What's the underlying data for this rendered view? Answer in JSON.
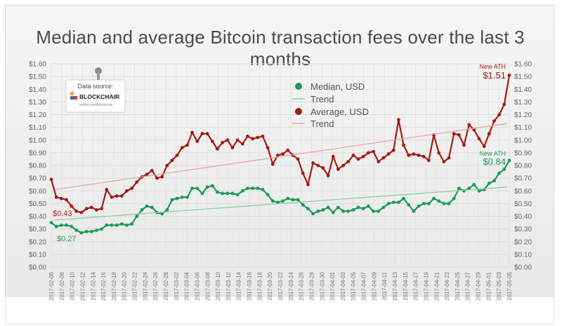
{
  "chart_data": {
    "type": "line",
    "title": "Median and average Bitcoin transaction fees over the last 3 months",
    "xlabel": "",
    "ylabel": "",
    "ylim": [
      0,
      1.6
    ],
    "y_ticks": [
      "$0.00",
      "$0.10",
      "$0.20",
      "$0.30",
      "$0.40",
      "$0.50",
      "$0.60",
      "$0.70",
      "$0.80",
      "$0.90",
      "$1.00",
      "$1.10",
      "$1.20",
      "$1.30",
      "$1.40",
      "$1.50",
      "$1.60"
    ],
    "x_ticks": [
      "2017-02-06",
      "2017-02-08",
      "2017-02-10",
      "2017-02-12",
      "2017-02-14",
      "2017-02-16",
      "2017-02-18",
      "2017-02-20",
      "2017-02-22",
      "2017-02-24",
      "2017-02-26",
      "2017-02-28",
      "2017-03-02",
      "2017-03-04",
      "2017-03-06",
      "2017-03-08",
      "2017-03-10",
      "2017-03-12",
      "2017-03-14",
      "2017-03-16",
      "2017-03-18",
      "2017-03-20",
      "2017-03-22",
      "2017-03-24",
      "2017-03-26",
      "2017-03-28",
      "2017-03-30",
      "2017-04-01",
      "2017-04-03",
      "2017-04-05",
      "2017-04-07",
      "2017-04-09",
      "2017-04-11",
      "2017-04-13",
      "2017-04-15",
      "2017-04-17",
      "2017-04-19",
      "2017-04-21",
      "2017-04-23",
      "2017-04-25",
      "2017-04-27",
      "2017-04-29",
      "2017-05-01",
      "2017-05-03",
      "2017-05-05"
    ],
    "series": [
      {
        "name": "Median, USD",
        "color": "#1f9a5a",
        "values": [
          0.35,
          0.32,
          0.33,
          0.33,
          0.32,
          0.29,
          0.27,
          0.28,
          0.28,
          0.29,
          0.3,
          0.33,
          0.33,
          0.33,
          0.34,
          0.33,
          0.34,
          0.4,
          0.45,
          0.48,
          0.47,
          0.43,
          0.42,
          0.45,
          0.53,
          0.54,
          0.55,
          0.55,
          0.62,
          0.62,
          0.58,
          0.63,
          0.64,
          0.59,
          0.58,
          0.58,
          0.58,
          0.57,
          0.6,
          0.62,
          0.62,
          0.62,
          0.61,
          0.57,
          0.52,
          0.51,
          0.52,
          0.54,
          0.53,
          0.53,
          0.49,
          0.46,
          0.42,
          0.44,
          0.45,
          0.47,
          0.43,
          0.47,
          0.44,
          0.44,
          0.45,
          0.47,
          0.46,
          0.48,
          0.44,
          0.44,
          0.47,
          0.5,
          0.51,
          0.51,
          0.54,
          0.49,
          0.44,
          0.48,
          0.5,
          0.5,
          0.54,
          0.52,
          0.5,
          0.5,
          0.54,
          0.62,
          0.6,
          0.62,
          0.65,
          0.6,
          0.61,
          0.66,
          0.68,
          0.74,
          0.77,
          0.84
        ]
      },
      {
        "name": "Trend",
        "color": "#8ccfa8",
        "values": [
          0.37,
          0.63
        ]
      },
      {
        "name": "Average, USD",
        "color": "#a11d12",
        "values": [
          0.69,
          0.55,
          0.54,
          0.53,
          0.48,
          0.44,
          0.43,
          0.46,
          0.47,
          0.45,
          0.46,
          0.61,
          0.55,
          0.56,
          0.56,
          0.6,
          0.62,
          0.67,
          0.71,
          0.73,
          0.76,
          0.7,
          0.71,
          0.8,
          0.84,
          0.88,
          0.94,
          0.96,
          1.06,
          0.99,
          1.05,
          1.05,
          0.99,
          0.93,
          0.98,
          1.0,
          0.94,
          1.0,
          0.97,
          1.03,
          1.01,
          1.02,
          1.03,
          0.94,
          0.81,
          0.88,
          0.89,
          0.92,
          0.88,
          0.85,
          0.74,
          0.65,
          0.82,
          0.8,
          0.78,
          0.72,
          0.87,
          0.77,
          0.8,
          0.83,
          0.88,
          0.85,
          0.87,
          0.9,
          0.91,
          0.83,
          0.86,
          0.89,
          0.92,
          1.16,
          0.96,
          0.88,
          0.89,
          0.88,
          0.87,
          0.84,
          1.04,
          0.9,
          0.83,
          0.86,
          1.05,
          1.04,
          0.96,
          1.12,
          1.08,
          1.01,
          0.95,
          1.05,
          1.15,
          1.2,
          1.28,
          1.51
        ]
      },
      {
        "name": "Trend",
        "color": "#e0a7a2",
        "values": [
          0.61,
          1.13
        ]
      }
    ],
    "annotations": [
      {
        "text": "$0.43",
        "series": "Average, USD",
        "point": "start"
      },
      {
        "text": "$0.27",
        "series": "Median, USD",
        "point": "start"
      },
      {
        "text": "New ATH",
        "series": "Average, USD",
        "point": "end"
      },
      {
        "text": "$1.51",
        "series": "Average, USD",
        "point": "end"
      },
      {
        "text": "New ATH",
        "series": "Median, USD",
        "point": "end"
      },
      {
        "text": "$0.84",
        "series": "Median, USD",
        "point": "end"
      }
    ],
    "grid": true,
    "legend_position": "top-center"
  },
  "source_box": {
    "line1": "Data source:",
    "brand": "BLOCKCHAIR",
    "line2": "twitter.com/blockchair"
  },
  "colors": {
    "median": "#1f9a5a",
    "median_trend": "#8ccfa8",
    "average": "#a11d12",
    "average_trend": "#e0a7a2"
  }
}
